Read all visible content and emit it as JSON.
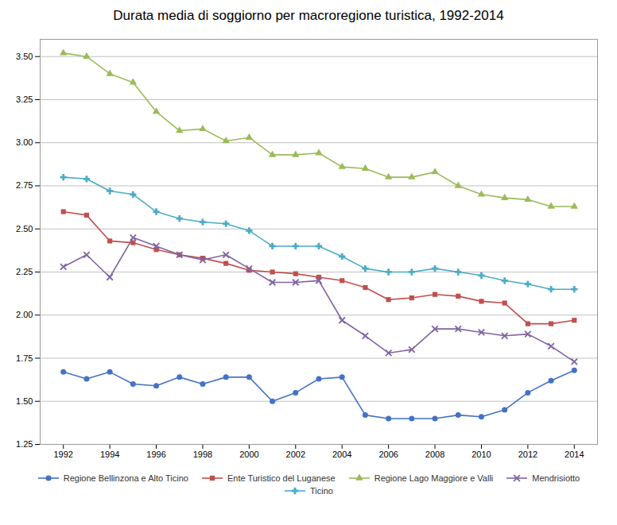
{
  "chart_data": {
    "type": "line",
    "title": "Durata media di soggiorno per macroregione turistica, 1992-2014",
    "x": [
      1992,
      1993,
      1994,
      1995,
      1996,
      1997,
      1998,
      1999,
      2000,
      2001,
      2002,
      2003,
      2004,
      2005,
      2006,
      2007,
      2008,
      2009,
      2010,
      2011,
      2012,
      2013,
      2014
    ],
    "series": [
      {
        "name": "Regione Bellinzona e Alto Ticino",
        "color": "#4472C4",
        "marker": "circle",
        "values": [
          1.67,
          1.63,
          1.67,
          1.6,
          1.59,
          1.64,
          1.6,
          1.64,
          1.64,
          1.5,
          1.55,
          1.63,
          1.64,
          1.42,
          1.4,
          1.4,
          1.4,
          1.42,
          1.41,
          1.45,
          1.55,
          1.62,
          1.68
        ]
      },
      {
        "name": "Ente Turistico del Luganese",
        "color": "#C0504D",
        "marker": "square",
        "values": [
          2.6,
          2.58,
          2.43,
          2.42,
          2.38,
          2.35,
          2.33,
          2.3,
          2.26,
          2.25,
          2.24,
          2.22,
          2.2,
          2.16,
          2.09,
          2.1,
          2.12,
          2.11,
          2.08,
          2.07,
          1.95,
          1.95,
          1.97
        ]
      },
      {
        "name": "Regione Lago Maggiore e Valli",
        "color": "#9BBB59",
        "marker": "triangle",
        "values": [
          3.52,
          3.5,
          3.4,
          3.35,
          3.18,
          3.07,
          3.08,
          3.01,
          3.03,
          2.93,
          2.93,
          2.94,
          2.86,
          2.85,
          2.8,
          2.8,
          2.83,
          2.75,
          2.7,
          2.68,
          2.67,
          2.63,
          2.63
        ]
      },
      {
        "name": "Mendrisiotto",
        "color": "#8064A2",
        "marker": "x",
        "values": [
          2.28,
          2.35,
          2.22,
          2.45,
          2.4,
          2.35,
          2.32,
          2.35,
          2.27,
          2.19,
          2.19,
          2.2,
          1.97,
          1.88,
          1.78,
          1.8,
          1.92,
          1.92,
          1.9,
          1.88,
          1.89,
          1.82,
          1.73
        ]
      },
      {
        "name": "Ticino",
        "color": "#4BACC6",
        "marker": "plus",
        "values": [
          2.8,
          2.79,
          2.72,
          2.7,
          2.6,
          2.56,
          2.54,
          2.53,
          2.49,
          2.4,
          2.4,
          2.4,
          2.34,
          2.27,
          2.25,
          2.25,
          2.27,
          2.25,
          2.23,
          2.2,
          2.18,
          2.15,
          2.15
        ]
      }
    ],
    "xlim": [
      1991,
      2015
    ],
    "xticks": [
      1992,
      1994,
      1996,
      1998,
      2000,
      2002,
      2004,
      2006,
      2008,
      2010,
      2012,
      2014
    ],
    "ylim": [
      1.25,
      3.6
    ],
    "yticks": [
      1.25,
      {
        "value": 1.5,
        "label": "1.50"
      },
      1.75,
      {
        "value": 2.0,
        "label": "2.00"
      },
      2.25,
      {
        "value": 2.5,
        "label": "2.50"
      },
      2.75,
      {
        "value": 3.0,
        "label": "3.00"
      },
      3.25,
      {
        "value": 3.5,
        "label": "3.50"
      }
    ],
    "grid": true
  }
}
